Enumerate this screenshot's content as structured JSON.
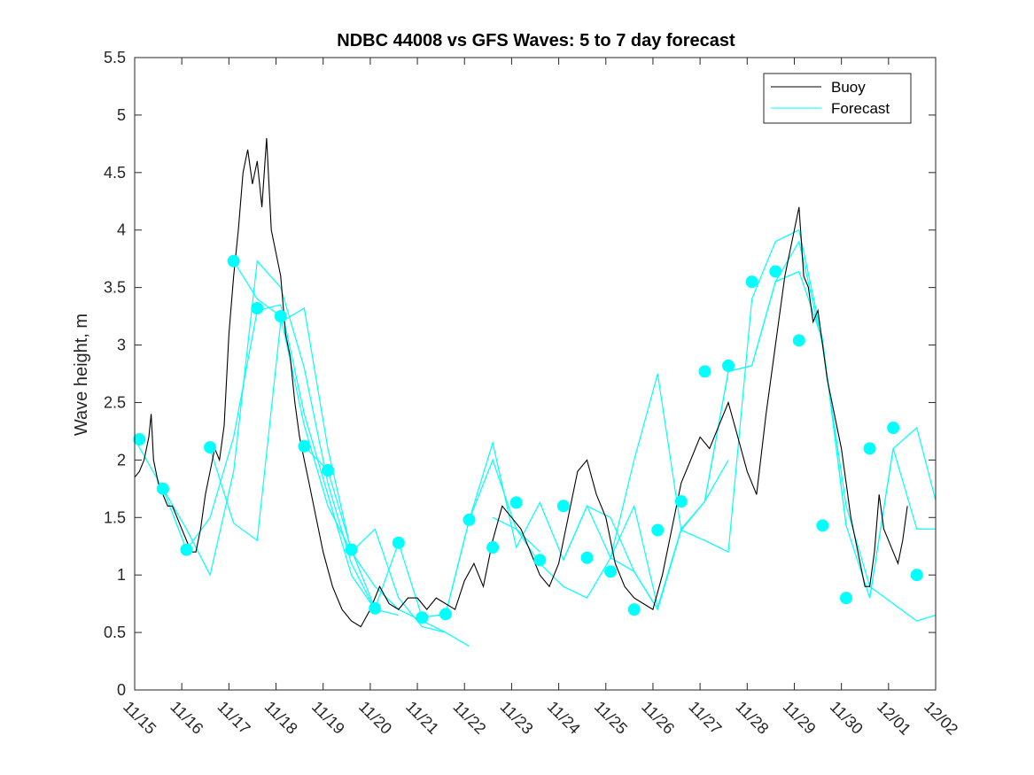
{
  "chart_data": {
    "type": "line",
    "title": "NDBC 44008 vs GFS Waves: 5 to 7 day forecast",
    "xlabel": "",
    "ylabel": "Wave height, m",
    "xlim": [
      0,
      17
    ],
    "ylim": [
      0,
      5.5
    ],
    "x_ticks": [
      0,
      1,
      2,
      3,
      4,
      5,
      6,
      7,
      8,
      9,
      10,
      11,
      12,
      13,
      14,
      15,
      16,
      17
    ],
    "x_tick_labels": [
      "11/15",
      "11/16",
      "11/17",
      "11/18",
      "11/19",
      "11/20",
      "11/21",
      "11/22",
      "11/23",
      "11/24",
      "11/25",
      "11/26",
      "11/27",
      "11/28",
      "11/29",
      "11/30",
      "12/01",
      "12/02"
    ],
    "y_ticks": [
      0,
      0.5,
      1,
      1.5,
      2,
      2.5,
      3,
      3.5,
      4,
      4.5,
      5,
      5.5
    ],
    "y_tick_labels": [
      "0",
      "0.5",
      "1",
      "1.5",
      "2",
      "2.5",
      "3",
      "3.5",
      "4",
      "4.5",
      "5",
      "5.5"
    ],
    "legend": {
      "position": "top-right",
      "entries": [
        "Buoy",
        "Forecast"
      ]
    },
    "colors": {
      "buoy": "#000000",
      "forecast": "#00ffff",
      "axis": "#262626"
    },
    "series": [
      {
        "name": "Buoy",
        "color": "#000000",
        "x": [
          0,
          0.1,
          0.2,
          0.3,
          0.35,
          0.4,
          0.5,
          0.6,
          0.7,
          0.8,
          0.9,
          1.0,
          1.1,
          1.2,
          1.3,
          1.4,
          1.5,
          1.6,
          1.7,
          1.8,
          1.9,
          2.0,
          2.1,
          2.2,
          2.3,
          2.4,
          2.5,
          2.6,
          2.7,
          2.8,
          2.9,
          3.0,
          3.1,
          3.2,
          3.3,
          3.4,
          3.5,
          3.6,
          3.7,
          3.8,
          3.9,
          4.0,
          4.2,
          4.4,
          4.6,
          4.8,
          5.0,
          5.2,
          5.4,
          5.6,
          5.8,
          6.0,
          6.2,
          6.4,
          6.6,
          6.8,
          7.0,
          7.2,
          7.4,
          7.6,
          7.8,
          8.0,
          8.2,
          8.4,
          8.6,
          8.8,
          9.0,
          9.2,
          9.4,
          9.6,
          9.8,
          10.0,
          10.2,
          10.4,
          10.6,
          10.8,
          11.0,
          11.2,
          11.4,
          11.6,
          11.8,
          12.0,
          12.2,
          12.4,
          12.6,
          12.8,
          13.0,
          13.2,
          13.4,
          13.6,
          13.8,
          14.0,
          14.1,
          14.2,
          14.3,
          14.4,
          14.5,
          14.6,
          14.7,
          14.8,
          14.9,
          15.0,
          15.1,
          15.2,
          15.3,
          15.4,
          15.5,
          15.6,
          15.7,
          15.8,
          15.9,
          16.0,
          16.1,
          16.2,
          16.3,
          16.4
        ],
        "y": [
          1.85,
          1.9,
          2.0,
          2.2,
          2.4,
          2.0,
          1.8,
          1.7,
          1.6,
          1.6,
          1.5,
          1.4,
          1.3,
          1.2,
          1.2,
          1.4,
          1.7,
          1.9,
          2.1,
          2.0,
          2.3,
          3.1,
          3.6,
          4.0,
          4.5,
          4.7,
          4.4,
          4.6,
          4.2,
          4.8,
          4.0,
          3.8,
          3.6,
          3.1,
          2.9,
          2.5,
          2.2,
          2.0,
          1.8,
          1.6,
          1.4,
          1.2,
          0.9,
          0.7,
          0.6,
          0.55,
          0.7,
          0.9,
          0.75,
          0.7,
          0.8,
          0.8,
          0.7,
          0.8,
          0.75,
          0.7,
          0.95,
          1.1,
          0.9,
          1.3,
          1.6,
          1.5,
          1.4,
          1.2,
          1.0,
          0.9,
          1.1,
          1.5,
          1.9,
          2.0,
          1.7,
          1.5,
          1.1,
          0.9,
          0.8,
          0.75,
          0.7,
          1.0,
          1.4,
          1.8,
          2.0,
          2.2,
          2.1,
          2.3,
          2.5,
          2.2,
          1.9,
          1.7,
          2.4,
          3.0,
          3.6,
          4.0,
          4.2,
          3.6,
          3.5,
          3.2,
          3.3,
          3.0,
          2.7,
          2.5,
          2.3,
          2.1,
          1.8,
          1.5,
          1.3,
          1.1,
          0.9,
          0.9,
          1.2,
          1.7,
          1.4,
          1.3,
          1.2,
          1.1,
          1.3,
          1.6
        ]
      },
      {
        "name": "Forecast",
        "color": "#00ffff",
        "x": [
          0,
          0.6,
          1.1,
          1.6,
          2.1,
          2.6,
          3.1,
          3.6,
          4.1,
          4.6,
          5.1
        ],
        "y": [
          2.18,
          1.75,
          1.22,
          1.5,
          2.2,
          3.3,
          3.35,
          2.4,
          1.7,
          1.0,
          0.7
        ]
      },
      {
        "name": "Forecast",
        "color": "#00ffff",
        "x": [
          0.6,
          1.1,
          1.6,
          2.1,
          2.6,
          3.1,
          3.6,
          4.1,
          4.6,
          5.1,
          5.6
        ],
        "y": [
          1.75,
          1.4,
          1.0,
          1.9,
          3.73,
          3.5,
          2.8,
          1.8,
          1.1,
          0.7,
          0.65
        ]
      },
      {
        "name": "Forecast",
        "color": "#00ffff",
        "x": [
          1.6,
          2.1,
          2.6,
          3.1,
          3.6,
          4.1,
          4.6,
          5.1,
          5.6,
          6.1,
          6.6
        ],
        "y": [
          2.1,
          1.45,
          1.3,
          3.2,
          3.32,
          2.1,
          1.2,
          0.9,
          0.7,
          0.6,
          0.5
        ]
      },
      {
        "name": "Forecast",
        "color": "#00ffff",
        "x": [
          2.1,
          2.6,
          3.1,
          3.6,
          4.1,
          4.6,
          5.1,
          5.6,
          6.1,
          6.6,
          7.1
        ],
        "y": [
          3.73,
          3.4,
          3.25,
          2.3,
          1.6,
          1.2,
          1.4,
          0.8,
          0.55,
          0.5,
          0.38
        ]
      },
      {
        "name": "Forecast",
        "color": "#00ffff",
        "x": [
          3.6,
          4.1,
          4.6,
          5.1,
          5.6,
          6.1,
          6.6,
          7.1,
          7.6,
          8.1,
          8.6
        ],
        "y": [
          2.12,
          1.91,
          1.22,
          0.71,
          1.28,
          0.63,
          0.66,
          1.48,
          2.0,
          1.4,
          1.2
        ]
      },
      {
        "name": "Forecast",
        "color": "#00ffff",
        "x": [
          6.1,
          6.6,
          7.1,
          7.6,
          8.1,
          8.6,
          9.1,
          9.6,
          10.1,
          10.6,
          11.1
        ],
        "y": [
          0.63,
          0.66,
          1.48,
          2.15,
          1.24,
          1.63,
          1.13,
          1.6,
          1.5,
          1.03,
          0.7
        ]
      },
      {
        "name": "Forecast",
        "color": "#00ffff",
        "x": [
          7.6,
          8.1,
          8.6,
          9.1,
          9.6,
          10.1,
          10.6,
          11.1,
          11.6,
          12.1,
          12.6
        ],
        "y": [
          1.5,
          1.4,
          1.1,
          0.9,
          0.8,
          1.15,
          1.6,
          0.72,
          1.4,
          1.64,
          2.0
        ]
      },
      {
        "name": "Forecast",
        "color": "#00ffff",
        "x": [
          9.1,
          9.6,
          10.1,
          10.6,
          11.1,
          11.6,
          12.1,
          12.6,
          13.1,
          13.6,
          14.1
        ],
        "y": [
          1.13,
          1.6,
          1.15,
          1.03,
          0.7,
          1.39,
          1.64,
          2.77,
          2.82,
          3.55,
          3.64
        ]
      },
      {
        "name": "Forecast",
        "color": "#00ffff",
        "x": [
          10.1,
          10.6,
          11.1,
          11.6,
          12.1,
          12.6,
          13.1,
          13.6,
          14.1,
          14.6,
          15.1
        ],
        "y": [
          1.15,
          2.0,
          2.75,
          1.39,
          1.3,
          1.2,
          3.4,
          3.9,
          4.0,
          3.04,
          1.43
        ]
      },
      {
        "name": "Forecast",
        "color": "#00ffff",
        "x": [
          12.1,
          12.6,
          13.1,
          13.6,
          14.1,
          14.6,
          15.1,
          15.6,
          16.1,
          16.6,
          17.0
        ],
        "y": [
          1.64,
          2.77,
          2.82,
          3.55,
          3.64,
          3.04,
          1.43,
          0.8,
          2.1,
          2.28,
          1.65
        ]
      },
      {
        "name": "Forecast",
        "color": "#00ffff",
        "x": [
          13.6,
          14.1,
          14.6,
          15.1,
          15.6,
          16.1,
          16.6,
          17.0
        ],
        "y": [
          3.55,
          3.9,
          3.0,
          1.6,
          0.9,
          0.75,
          0.6,
          0.65
        ]
      },
      {
        "name": "Forecast",
        "color": "#00ffff",
        "x": [
          15.6,
          16.1,
          16.6,
          17.0
        ],
        "y": [
          0.8,
          2.1,
          1.4,
          1.4
        ]
      }
    ],
    "forecast_markers": {
      "x": [
        0.1,
        0.6,
        1.1,
        1.6,
        2.1,
        2.6,
        3.1,
        3.6,
        4.1,
        4.6,
        5.1,
        5.6,
        6.1,
        6.6,
        7.1,
        7.6,
        8.1,
        8.6,
        9.1,
        9.6,
        10.1,
        10.6,
        11.1,
        11.6,
        12.1,
        12.6,
        13.1,
        13.6,
        14.1,
        14.6,
        15.1,
        15.6,
        16.1,
        16.6
      ],
      "y": [
        2.18,
        1.75,
        1.22,
        2.11,
        3.73,
        3.32,
        3.25,
        2.12,
        1.91,
        1.22,
        0.71,
        1.28,
        0.63,
        0.66,
        1.48,
        1.24,
        1.63,
        1.13,
        1.6,
        1.15,
        1.03,
        0.7,
        1.39,
        1.64,
        2.77,
        2.82,
        3.55,
        3.64,
        3.04,
        1.43,
        0.8,
        2.1,
        2.28,
        1.0
      ]
    }
  }
}
